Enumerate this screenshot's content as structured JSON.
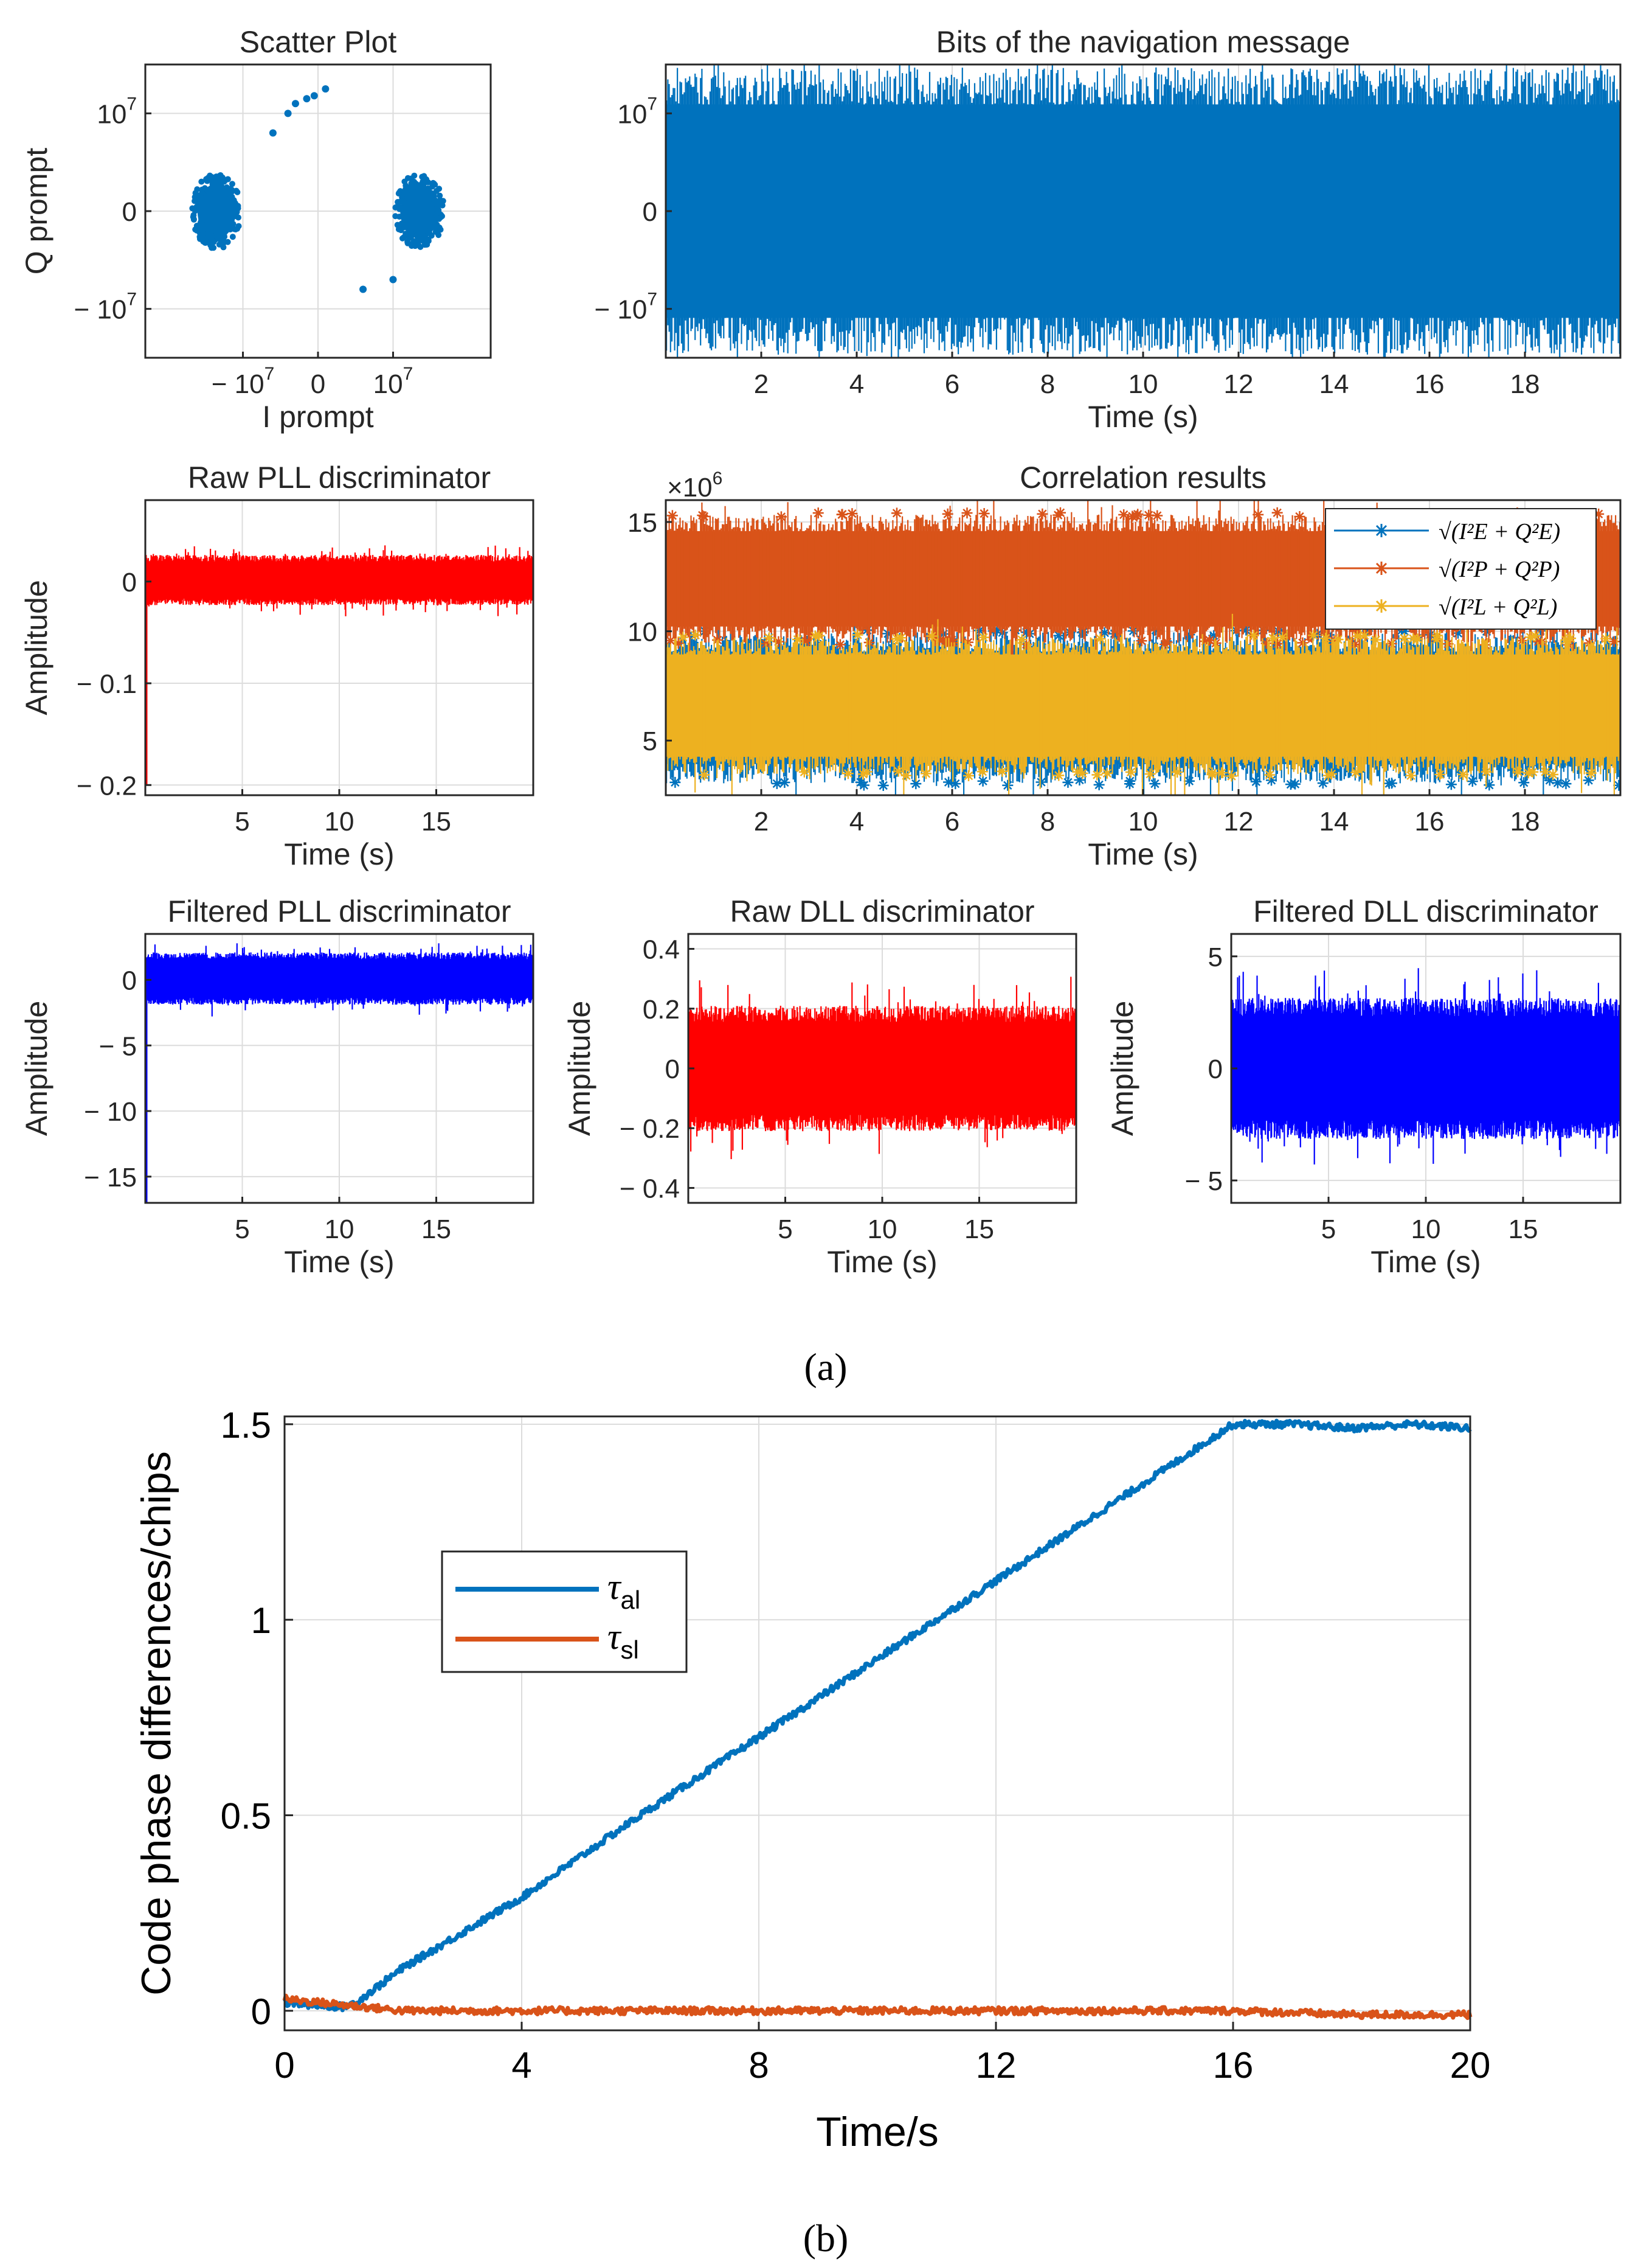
{
  "colors": {
    "blue": "#0072BD",
    "orange": "#D95319",
    "yellow": "#EDB120",
    "red": "#FF0000",
    "pureblue": "#0000FF",
    "grid": "#DCDCDC"
  },
  "captions": {
    "a": "(a)",
    "b": "(b)"
  },
  "chart_data": [
    {
      "id": "scatter",
      "type": "scatter",
      "title": "Scatter Plot",
      "xlabel": "I prompt",
      "ylabel": "Q prompt",
      "xlim": [
        -23000000,
        23000000
      ],
      "ylim": [
        -15000000,
        15000000
      ],
      "xticks": [
        -10000000,
        0,
        10000000
      ],
      "xtick_labels": [
        "− 10",
        "0",
        "10"
      ],
      "xtick_exp": [
        "7",
        "",
        "7"
      ],
      "yticks": [
        -10000000,
        0,
        10000000
      ],
      "ytick_labels": [
        "− 10",
        "0",
        "10"
      ],
      "ytick_exp": [
        "7",
        "",
        "7"
      ],
      "clusters": [
        {
          "x": -13500000,
          "y": 0,
          "rx": 3000000,
          "ry": 3500000
        },
        {
          "x": 13500000,
          "y": 0,
          "rx": 3000000,
          "ry": 3500000
        }
      ],
      "outliers": [
        {
          "x": -6000000,
          "y": 8000000
        },
        {
          "x": -4000000,
          "y": 10000000
        },
        {
          "x": -3000000,
          "y": 11000000
        },
        {
          "x": -1500000,
          "y": 11500000
        },
        {
          "x": -500000,
          "y": 11800000
        },
        {
          "x": 1000000,
          "y": 12500000
        },
        {
          "x": 6000000,
          "y": -8000000
        },
        {
          "x": 10000000,
          "y": -7000000
        }
      ]
    },
    {
      "id": "bits",
      "type": "line",
      "title": "Bits of the navigation message",
      "xlabel": "Time (s)",
      "ylabel": "",
      "xlim": [
        0,
        20
      ],
      "ylim": [
        -15000000,
        15000000
      ],
      "xticks": [
        2,
        4,
        6,
        8,
        10,
        12,
        14,
        16,
        18
      ],
      "xtick_labels": [
        "2",
        "4",
        "6",
        "8",
        "10",
        "12",
        "14",
        "16",
        "18"
      ],
      "yticks": [
        -10000000,
        0,
        10000000
      ],
      "ytick_labels": [
        "− 10",
        "0",
        "10"
      ],
      "ytick_exp": [
        "7",
        "",
        "7"
      ],
      "series": [
        {
          "name": "bits",
          "color": "#0072BD",
          "band": [
            -14000000,
            14000000
          ]
        }
      ]
    },
    {
      "id": "rawpll",
      "type": "line",
      "title": "Raw PLL discriminator",
      "xlabel": "Time (s)",
      "ylabel": "Amplitude",
      "xlim": [
        0,
        20
      ],
      "ylim": [
        -0.21,
        0.08
      ],
      "xticks": [
        5,
        10,
        15
      ],
      "xtick_labels": [
        "5",
        "10",
        "15"
      ],
      "yticks": [
        0,
        -0.1,
        -0.2
      ],
      "ytick_labels": [
        "0",
        "− 0.1",
        "− 0.2"
      ],
      "series": [
        {
          "name": "raw PLL",
          "color": "#FF0000",
          "band": [
            -0.022,
            0.025
          ],
          "start_spike": -0.2
        }
      ]
    },
    {
      "id": "corr",
      "type": "line",
      "title": "Correlation results",
      "xlabel": "Time (s)",
      "ylabel": "",
      "multiplier": "×10",
      "multiplier_exp": "6",
      "xlim": [
        0,
        20
      ],
      "ylim": [
        2500000,
        16000000
      ],
      "xticks": [
        2,
        4,
        6,
        8,
        10,
        12,
        14,
        16,
        18
      ],
      "xtick_labels": [
        "2",
        "4",
        "6",
        "8",
        "10",
        "12",
        "14",
        "16",
        "18"
      ],
      "yticks": [
        5000000,
        10000000,
        15000000
      ],
      "ytick_labels": [
        "5",
        "10",
        "15"
      ],
      "series": [
        {
          "name": "sqrt(IE^2+QE^2)",
          "color": "#0072BD",
          "band": [
            3200000,
            9800000
          ]
        },
        {
          "name": "sqrt(IP^2+QP^2)",
          "color": "#D95319",
          "band": [
            9600000,
            15200000
          ]
        },
        {
          "name": "sqrt(IL^2+QL^2)",
          "color": "#EDB120",
          "band": [
            3600000,
            9600000
          ]
        }
      ],
      "legend": [
        "√(I²E + Q²E)",
        "√(I²P + Q²P)",
        "√(I²L + Q²L)"
      ],
      "legend_position": "top-right"
    },
    {
      "id": "filtpll",
      "type": "line",
      "title": "Filtered PLL discriminator",
      "xlabel": "Time (s)",
      "ylabel": "Amplitude",
      "xlim": [
        0,
        20
      ],
      "ylim": [
        -17,
        3.5
      ],
      "xticks": [
        5,
        10,
        15
      ],
      "xtick_labels": [
        "5",
        "10",
        "15"
      ],
      "yticks": [
        0,
        -5,
        -10,
        -15
      ],
      "ytick_labels": [
        "0",
        "− 5",
        "− 10",
        "− 15"
      ],
      "series": [
        {
          "name": "filtered PLL",
          "color": "#0000FF",
          "band": [
            -1.8,
            2.0
          ],
          "start_spike": -17
        }
      ]
    },
    {
      "id": "rawdll",
      "type": "line",
      "title": "Raw DLL discriminator",
      "xlabel": "Time (s)",
      "ylabel": "Amplitude",
      "xlim": [
        0,
        20
      ],
      "ylim": [
        -0.45,
        0.45
      ],
      "xticks": [
        5,
        10,
        15
      ],
      "xtick_labels": [
        "5",
        "10",
        "15"
      ],
      "yticks": [
        0.4,
        0.2,
        0,
        -0.2,
        -0.4
      ],
      "ytick_labels": [
        "0.4",
        "0.2",
        "0",
        "− 0.2",
        "− 0.4"
      ],
      "series": [
        {
          "name": "raw DLL",
          "color": "#FF0000",
          "band": [
            -0.2,
            0.2
          ]
        }
      ]
    },
    {
      "id": "filtdll",
      "type": "line",
      "title": "Filtered DLL discriminator",
      "xlabel": "Time (s)",
      "ylabel": "Amplitude",
      "xlim": [
        0,
        20
      ],
      "ylim": [
        -6,
        6
      ],
      "xticks": [
        5,
        10,
        15
      ],
      "xtick_labels": [
        "5",
        "10",
        "15"
      ],
      "yticks": [
        5,
        0,
        -5
      ],
      "ytick_labels": [
        "5",
        "0",
        "− 5"
      ],
      "series": [
        {
          "name": "filtered DLL",
          "color": "#0000FF",
          "band": [
            -3,
            3
          ]
        }
      ]
    },
    {
      "id": "codephase",
      "type": "line",
      "title": "",
      "xlabel": "Time/s",
      "ylabel": "Code phase differences/chips",
      "xlim": [
        0,
        20
      ],
      "ylim": [
        -0.05,
        1.52
      ],
      "xticks": [
        0,
        4,
        8,
        12,
        16,
        20
      ],
      "xtick_labels": [
        "0",
        "4",
        "8",
        "12",
        "16",
        "20"
      ],
      "yticks": [
        0,
        0.5,
        1,
        1.5
      ],
      "ytick_labels": [
        "0",
        "0.5",
        "1",
        "1.5"
      ],
      "series": [
        {
          "name": "τal",
          "color": "#0072BD",
          "x": [
            0,
            1,
            1.2,
            2,
            4,
            6,
            8,
            10,
            12,
            14,
            15,
            16,
            17,
            18,
            19,
            20
          ],
          "y": [
            0.02,
            0.01,
            0.02,
            0.11,
            0.29,
            0.5,
            0.7,
            0.9,
            1.1,
            1.3,
            1.4,
            1.5,
            1.5,
            1.49,
            1.5,
            1.49
          ]
        },
        {
          "name": "τsl",
          "color": "#D95319",
          "x": [
            0,
            2,
            4,
            6,
            8,
            10,
            12,
            14,
            16,
            18,
            20
          ],
          "y": [
            0.03,
            0.0,
            0.0,
            0.0,
            0.0,
            0.0,
            0.0,
            0.0,
            0.0,
            -0.01,
            -0.01
          ]
        }
      ],
      "legend": [
        "τ",
        "τ"
      ],
      "legend_sub": [
        "al",
        "sl"
      ],
      "legend_position": "center-left"
    }
  ]
}
